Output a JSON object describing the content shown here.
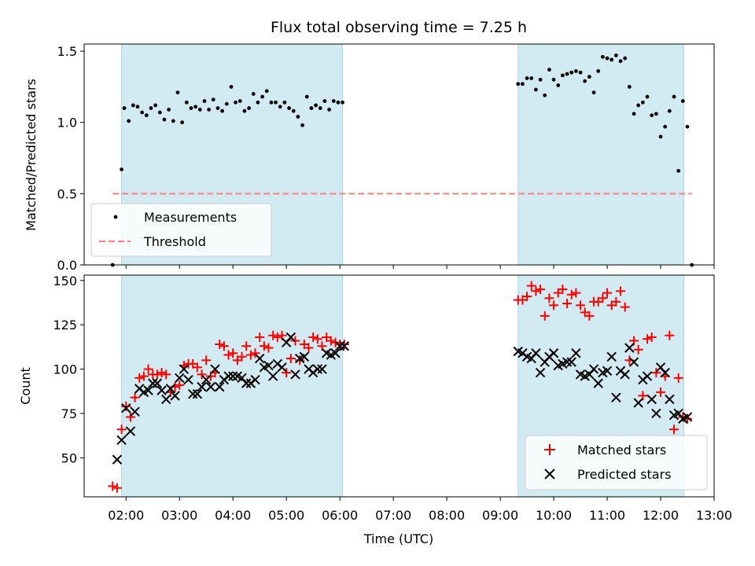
{
  "colors": {
    "shade": "#add8e6",
    "measurement": "#000000",
    "threshold": "#ff7f7f",
    "matched": "#ff0000",
    "predicted": "#000000"
  },
  "chart_data": [
    {
      "type": "scatter",
      "title": "Flux total observing time = 7.25 h",
      "xlabel": "",
      "ylabel": "Matched/Predicted stars",
      "ylim": [
        0,
        1.55
      ],
      "xlim": [
        "01:13",
        "13:00"
      ],
      "grid": false,
      "legend_position": "lower-left",
      "shaded_intervals": [
        [
          "01:55",
          "06:03"
        ],
        [
          "09:20",
          "12:26"
        ]
      ],
      "y_ticks": [
        "0.0",
        "0.5",
        "1.0",
        "1.5"
      ],
      "series": [
        {
          "name": "Measurements",
          "marker": "dot",
          "x": [
            "01:45",
            "01:55",
            "01:58",
            "02:03",
            "02:08",
            "02:13",
            "02:18",
            "02:23",
            "02:28",
            "02:33",
            "02:38",
            "02:43",
            "02:48",
            "02:53",
            "02:58",
            "03:03",
            "03:08",
            "03:13",
            "03:18",
            "03:23",
            "03:28",
            "03:33",
            "03:38",
            "03:43",
            "03:48",
            "03:53",
            "03:58",
            "04:03",
            "04:08",
            "04:13",
            "04:18",
            "04:23",
            "04:28",
            "04:33",
            "04:38",
            "04:43",
            "04:48",
            "04:53",
            "04:58",
            "05:03",
            "05:08",
            "05:13",
            "05:18",
            "05:23",
            "05:28",
            "05:33",
            "05:38",
            "05:43",
            "05:48",
            "05:53",
            "05:58",
            "06:03",
            "09:20",
            "09:25",
            "09:30",
            "09:35",
            "09:40",
            "09:45",
            "09:50",
            "09:55",
            "10:00",
            "10:05",
            "10:10",
            "10:15",
            "10:20",
            "10:25",
            "10:30",
            "10:35",
            "10:40",
            "10:45",
            "10:50",
            "10:55",
            "11:00",
            "11:05",
            "11:10",
            "11:15",
            "11:20",
            "11:25",
            "11:30",
            "11:35",
            "11:40",
            "11:45",
            "11:50",
            "11:55",
            "12:00",
            "12:05",
            "12:10",
            "12:15",
            "12:20",
            "12:25",
            "12:30",
            "12:35"
          ],
          "y": [
            0.0,
            0.67,
            1.1,
            1.01,
            1.12,
            1.11,
            1.07,
            1.05,
            1.1,
            1.12,
            1.07,
            1.02,
            1.09,
            1.01,
            1.21,
            1.0,
            1.14,
            1.1,
            1.11,
            1.09,
            1.15,
            1.09,
            1.16,
            1.1,
            1.08,
            1.13,
            1.25,
            1.14,
            1.15,
            1.08,
            1.1,
            1.2,
            1.14,
            1.18,
            1.22,
            1.14,
            1.14,
            1.11,
            1.14,
            1.1,
            1.08,
            1.04,
            0.98,
            1.18,
            1.1,
            1.12,
            1.1,
            1.15,
            1.09,
            1.15,
            1.14,
            1.14,
            1.27,
            1.27,
            1.31,
            1.31,
            1.23,
            1.3,
            1.19,
            1.37,
            1.3,
            1.26,
            1.33,
            1.34,
            1.35,
            1.36,
            1.35,
            1.29,
            1.32,
            1.21,
            1.36,
            1.46,
            1.45,
            1.44,
            1.47,
            1.43,
            1.45,
            1.25,
            1.06,
            1.12,
            1.14,
            1.18,
            1.05,
            1.06,
            0.9,
            0.97,
            1.08,
            1.18,
            0.66,
            1.15,
            0.97,
            0.0
          ]
        },
        {
          "name": "Threshold",
          "marker": "dashed-line",
          "x": [
            "01:45",
            "12:35"
          ],
          "y": [
            0.5,
            0.5
          ]
        }
      ]
    },
    {
      "type": "scatter",
      "title": "",
      "xlabel": "Time (UTC)",
      "ylabel": "Count",
      "ylim": [
        28,
        153
      ],
      "xlim": [
        "01:13",
        "13:00"
      ],
      "grid": false,
      "legend_position": "lower-right",
      "shaded_intervals": [
        [
          "01:55",
          "06:03"
        ],
        [
          "09:20",
          "12:26"
        ]
      ],
      "y_ticks": [
        "50",
        "75",
        "100",
        "125",
        "150"
      ],
      "x_ticks": [
        "02:00",
        "03:00",
        "04:00",
        "05:00",
        "06:00",
        "07:00",
        "08:00",
        "09:00",
        "10:00",
        "11:00",
        "12:00",
        "13:00"
      ],
      "series": [
        {
          "name": "Matched stars",
          "marker": "plus",
          "x": [
            "01:45",
            "01:50",
            "01:55",
            "02:00",
            "02:05",
            "02:10",
            "02:15",
            "02:20",
            "02:25",
            "02:30",
            "02:35",
            "02:40",
            "02:45",
            "02:50",
            "02:55",
            "03:00",
            "03:05",
            "03:10",
            "03:15",
            "03:20",
            "03:25",
            "03:30",
            "03:35",
            "03:40",
            "03:45",
            "03:50",
            "03:55",
            "04:00",
            "04:05",
            "04:10",
            "04:15",
            "04:20",
            "04:25",
            "04:30",
            "04:35",
            "04:40",
            "04:45",
            "04:50",
            "04:55",
            "05:00",
            "05:05",
            "05:10",
            "05:15",
            "05:20",
            "05:25",
            "05:30",
            "05:35",
            "05:40",
            "05:45",
            "05:50",
            "05:55",
            "06:00",
            "06:05",
            "09:20",
            "09:25",
            "09:30",
            "09:35",
            "09:40",
            "09:45",
            "09:50",
            "09:55",
            "10:00",
            "10:05",
            "10:10",
            "10:15",
            "10:20",
            "10:25",
            "10:30",
            "10:35",
            "10:40",
            "10:45",
            "10:50",
            "10:55",
            "11:00",
            "11:05",
            "11:10",
            "11:15",
            "11:20",
            "11:25",
            "11:30",
            "11:35",
            "11:40",
            "11:45",
            "11:50",
            "11:55",
            "12:00",
            "12:05",
            "12:10",
            "12:15",
            "12:20",
            "12:25",
            "12:30"
          ],
          "y": [
            34,
            33,
            66,
            79,
            73,
            84,
            95,
            96,
            100,
            97,
            97,
            98,
            97,
            87,
            90,
            91,
            102,
            103,
            103,
            101,
            97,
            105,
            96,
            98,
            114,
            113,
            108,
            109,
            105,
            107,
            113,
            108,
            109,
            118,
            113,
            112,
            119,
            118,
            119,
            98,
            106,
            116,
            105,
            114,
            112,
            118,
            117,
            113,
            118,
            116,
            115,
            114,
            114,
            139,
            139,
            141,
            147,
            144,
            145,
            130,
            140,
            136,
            143,
            145,
            137,
            142,
            143,
            136,
            132,
            130,
            138,
            138,
            140,
            143,
            136,
            138,
            144,
            135,
            105,
            116,
            111,
            85,
            117,
            118,
            98,
            87,
            96,
            119,
            66,
            95,
            73,
            72
          ]
        },
        {
          "name": "Predicted stars",
          "marker": "x",
          "x": [
            "01:50",
            "01:55",
            "02:00",
            "02:05",
            "02:10",
            "02:15",
            "02:20",
            "02:25",
            "02:30",
            "02:35",
            "02:40",
            "02:45",
            "02:50",
            "02:55",
            "03:00",
            "03:05",
            "03:10",
            "03:15",
            "03:20",
            "03:25",
            "03:30",
            "03:35",
            "03:40",
            "03:45",
            "03:50",
            "03:55",
            "04:00",
            "04:05",
            "04:10",
            "04:15",
            "04:20",
            "04:25",
            "04:30",
            "04:35",
            "04:40",
            "04:45",
            "04:50",
            "04:55",
            "05:00",
            "05:05",
            "05:10",
            "05:15",
            "05:20",
            "05:25",
            "05:30",
            "05:35",
            "05:40",
            "05:45",
            "05:50",
            "05:55",
            "06:00",
            "06:05",
            "09:20",
            "09:25",
            "09:30",
            "09:35",
            "09:40",
            "09:45",
            "09:50",
            "09:55",
            "10:00",
            "10:05",
            "10:10",
            "10:15",
            "10:20",
            "10:25",
            "10:30",
            "10:35",
            "10:40",
            "10:45",
            "10:50",
            "10:55",
            "11:00",
            "11:05",
            "11:10",
            "11:15",
            "11:20",
            "11:25",
            "11:30",
            "11:35",
            "11:40",
            "11:45",
            "11:50",
            "11:55",
            "12:00",
            "12:05",
            "12:10",
            "12:15",
            "12:20",
            "12:25",
            "12:30"
          ],
          "y": [
            49,
            60,
            78,
            65,
            76,
            89,
            87,
            88,
            92,
            92,
            88,
            83,
            89,
            85,
            95,
            100,
            94,
            86,
            86,
            90,
            94,
            90,
            100,
            90,
            94,
            96,
            96,
            96,
            95,
            92,
            92,
            94,
            106,
            101,
            102,
            96,
            103,
            101,
            115,
            118,
            97,
            106,
            107,
            100,
            98,
            100,
            100,
            109,
            108,
            109,
            113,
            113,
            110,
            109,
            107,
            106,
            109,
            98,
            104,
            107,
            109,
            102,
            103,
            104,
            104,
            109,
            97,
            96,
            97,
            100,
            92,
            98,
            99,
            107,
            84,
            99,
            97,
            112,
            104,
            81,
            94,
            96,
            83,
            75,
            101,
            98,
            83,
            74,
            75,
            72,
            73
          ]
        }
      ]
    }
  ]
}
